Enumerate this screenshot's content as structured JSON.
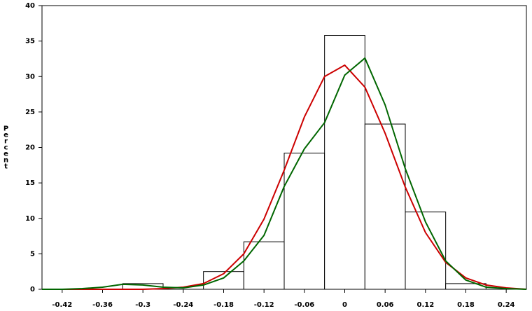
{
  "chart_data": {
    "type": "histogram",
    "y_label": "Percent",
    "bins": [
      -0.33,
      -0.27,
      -0.21,
      -0.15,
      -0.09,
      -0.03,
      0.03,
      0.09,
      0.15,
      0.21
    ],
    "counts": [
      0.8,
      0,
      2.5,
      6.7,
      19.2,
      35.8,
      23.3,
      10.9,
      0.8
    ],
    "bar_fill": "#ffffff",
    "bar_stroke": "#000000",
    "curve_x": [
      -0.45,
      -0.42,
      -0.39,
      -0.36,
      -0.33,
      -0.3,
      -0.27,
      -0.24,
      -0.21,
      -0.18,
      -0.15,
      -0.12,
      -0.09,
      -0.06,
      -0.03,
      0,
      0.03,
      0.06,
      0.09,
      0.12,
      0.15,
      0.18,
      0.21,
      0.24,
      0.27
    ],
    "curves": [
      {
        "color": "#cc0000",
        "values": [
          0,
          0,
          0,
          0,
          0,
          0,
          0.1,
          0.3,
          0.8,
          2.2,
          5.0,
          9.9,
          16.8,
          24.3,
          30.0,
          31.6,
          28.5,
          22.0,
          14.4,
          8.0,
          3.8,
          1.6,
          0.6,
          0.2,
          0
        ]
      },
      {
        "color": "#006600",
        "values": [
          0,
          0,
          0.1,
          0.3,
          0.7,
          0.6,
          0.3,
          0.2,
          0.6,
          1.6,
          4.0,
          7.6,
          14.5,
          19.8,
          23.5,
          30.2,
          32.6,
          26.0,
          17.0,
          9.5,
          4.0,
          1.3,
          0.3,
          0.1,
          0
        ]
      }
    ],
    "xlim": [
      -0.45,
      0.27
    ],
    "xticks": [
      -0.42,
      -0.36,
      -0.3,
      -0.24,
      -0.18,
      -0.12,
      -0.06,
      0,
      0.06,
      0.12,
      0.18,
      0.24
    ],
    "ylim": [
      0,
      40
    ],
    "yticks": [
      0,
      5,
      10,
      15,
      20,
      25,
      30,
      35,
      40
    ]
  }
}
